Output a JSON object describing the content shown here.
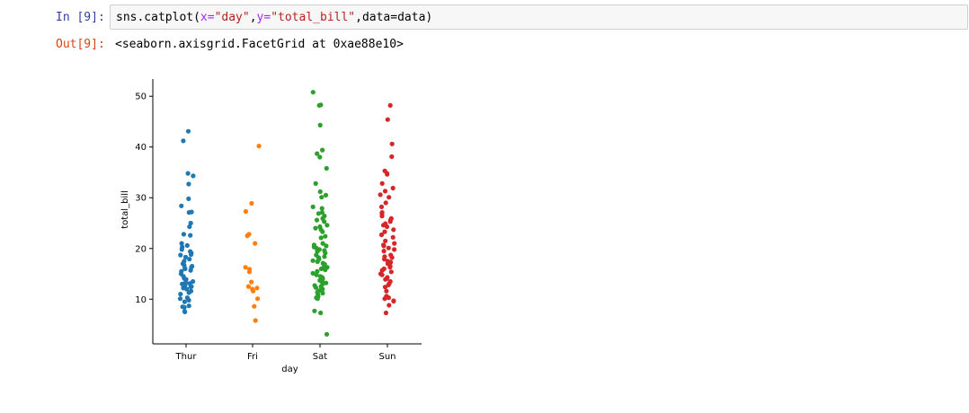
{
  "notebook": {
    "in_prompt": "In [9]:",
    "out_prompt": "Out[9]:",
    "code": {
      "fn": "sns.catplot(",
      "x_kw": "x=",
      "x_val": "\"day\"",
      "comma1": ",",
      "y_kw": "y=",
      "y_val": "\"total_bill\"",
      "comma2": ",",
      "data_kw": "data=data)"
    },
    "output_repr": "<seaborn.axisgrid.FacetGrid at 0xae88e10>"
  },
  "chart_data": {
    "type": "scatter",
    "xlabel": "day",
    "ylabel": "total_bill",
    "categories": [
      "Thur",
      "Fri",
      "Sat",
      "Sun"
    ],
    "y_ticks": [
      10,
      20,
      30,
      40,
      50
    ],
    "ylim": [
      1.2,
      53.4
    ],
    "series": [
      {
        "name": "Thur",
        "color": "#1f77b4",
        "values": [
          43.1,
          41.2,
          34.8,
          34.3,
          32.7,
          29.8,
          28.4,
          27.2,
          27.1,
          25.0,
          24.3,
          22.8,
          22.6,
          21.0,
          20.6,
          20.3,
          19.8,
          19.4,
          19.1,
          18.8,
          18.7,
          18.3,
          17.9,
          17.5,
          17.0,
          16.7,
          16.5,
          16.3,
          16.1,
          16.0,
          15.7,
          15.5,
          15.0,
          14.5,
          14.1,
          13.9,
          13.5,
          13.3,
          13.1,
          13.0,
          12.8,
          12.5,
          12.4,
          12.2,
          12.0,
          11.6,
          11.3,
          11.0,
          10.3,
          10.1,
          9.8,
          9.5,
          8.7,
          8.5,
          8.4,
          7.6,
          7.5
        ]
      },
      {
        "name": "Fri",
        "color": "#ff7f0e",
        "values": [
          40.2,
          28.9,
          27.3,
          22.8,
          22.5,
          21.0,
          16.3,
          15.9,
          15.4,
          13.4,
          12.5,
          12.2,
          12.0,
          11.6,
          10.1,
          8.6,
          5.8
        ]
      },
      {
        "name": "Sat",
        "color": "#2ca02c",
        "values": [
          50.8,
          48.3,
          48.2,
          44.3,
          39.4,
          38.7,
          38.0,
          35.8,
          32.8,
          31.2,
          30.5,
          30.1,
          28.2,
          27.9,
          27.1,
          26.9,
          26.4,
          25.9,
          25.6,
          25.3,
          24.6,
          24.3,
          24.0,
          23.7,
          23.3,
          22.4,
          22.1,
          21.0,
          20.7,
          20.5,
          20.3,
          20.1,
          19.8,
          19.6,
          19.4,
          19.1,
          18.7,
          18.4,
          18.2,
          17.9,
          17.6,
          17.4,
          17.1,
          16.9,
          16.6,
          16.3,
          16.0,
          15.8,
          15.5,
          15.1,
          14.8,
          14.5,
          14.3,
          14.1,
          13.9,
          13.7,
          13.4,
          13.2,
          13.0,
          12.7,
          12.5,
          12.3,
          12.0,
          11.7,
          11.4,
          11.2,
          10.9,
          10.6,
          10.3,
          10.1,
          7.7,
          7.3,
          3.1
        ]
      },
      {
        "name": "Sun",
        "color": "#d62728",
        "values": [
          48.2,
          45.4,
          40.6,
          38.1,
          35.3,
          34.8,
          34.6,
          32.8,
          31.9,
          31.3,
          30.6,
          30.1,
          29.0,
          28.2,
          27.1,
          26.9,
          26.4,
          25.9,
          25.6,
          25.3,
          24.9,
          24.6,
          24.3,
          23.7,
          23.3,
          22.7,
          22.2,
          21.5,
          21.0,
          20.7,
          20.5,
          20.1,
          19.8,
          19.5,
          18.7,
          18.4,
          18.2,
          17.9,
          17.5,
          17.3,
          17.0,
          16.5,
          16.3,
          16.0,
          15.7,
          15.4,
          15.0,
          14.8,
          14.3,
          14.1,
          13.9,
          13.5,
          13.1,
          12.8,
          12.4,
          11.6,
          10.6,
          10.3,
          10.1,
          9.7,
          9.6,
          8.8,
          7.3
        ]
      }
    ],
    "axes": {
      "spines": "left-bottom",
      "grid": false
    }
  }
}
